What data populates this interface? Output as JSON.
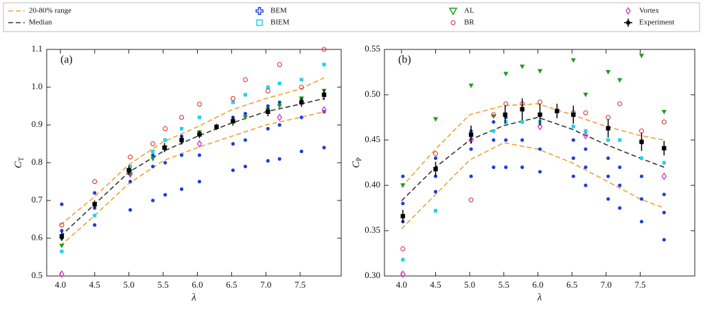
{
  "chart_data": [
    {
      "type": "scatter",
      "annotation": "(a)",
      "xlabel": "λ",
      "ylabel": "C",
      "ylabel_sub": "T",
      "xlim": [
        3.8,
        8.1
      ],
      "ylim": [
        0.5,
        1.1
      ],
      "xticks": [
        {
          "value": 4,
          "label": "4.0"
        },
        4.5,
        {
          "value": 5,
          "label": "5.0"
        },
        5.5,
        {
          "value": 6,
          "label": "6.0"
        },
        6.5,
        {
          "value": 7,
          "label": "7.0"
        },
        7.5
      ],
      "yticks": [
        0.5,
        0.6,
        0.7,
        0.8,
        0.9,
        {
          "value": 1,
          "label": "1.0"
        },
        1.1
      ],
      "series": [
        {
          "type": "band",
          "name": "20-80% range",
          "color": "#f0a030",
          "x": [
            4.0,
            4.5,
            5.0,
            5.5,
            6.0,
            6.5,
            7.0,
            7.5,
            7.85
          ],
          "low": [
            0.58,
            0.66,
            0.745,
            0.805,
            0.84,
            0.87,
            0.9,
            0.92,
            0.935
          ],
          "high": [
            0.635,
            0.71,
            0.795,
            0.855,
            0.895,
            0.94,
            0.97,
            0.995,
            1.025
          ]
        },
        {
          "type": "line",
          "name": "Median",
          "color": "#333333",
          "x": [
            4.0,
            4.5,
            5.0,
            5.5,
            6.0,
            6.5,
            7.0,
            7.5,
            7.85
          ],
          "values": [
            0.605,
            0.69,
            0.775,
            0.83,
            0.87,
            0.905,
            0.935,
            0.955,
            0.97
          ]
        },
        {
          "type": "points",
          "name": "BEM",
          "color": "#1f3fd6",
          "marker": "dot",
          "legend_marker": "plus",
          "x": [
            4.02,
            4.02,
            4.02,
            4.5,
            4.5,
            4.5,
            5.02,
            5.02,
            5.02,
            5.35,
            5.35,
            5.35,
            5.53,
            5.53,
            5.53,
            5.77,
            5.77,
            5.77,
            6.03,
            6.03,
            6.03,
            6.52,
            6.52,
            6.52,
            6.7,
            6.7,
            6.7,
            7.03,
            7.03,
            7.03,
            7.2,
            7.2,
            7.2,
            7.52,
            7.52,
            7.52,
            7.85,
            7.85,
            7.85
          ],
          "values": [
            0.69,
            0.62,
            0.6,
            0.72,
            0.68,
            0.635,
            0.78,
            0.75,
            0.675,
            0.82,
            0.79,
            0.7,
            0.84,
            0.8,
            0.715,
            0.87,
            0.82,
            0.73,
            0.88,
            0.82,
            0.75,
            0.92,
            0.85,
            0.78,
            0.93,
            0.86,
            0.79,
            0.95,
            0.89,
            0.805,
            0.96,
            0.9,
            0.81,
            0.97,
            0.92,
            0.83,
            0.98,
            0.935,
            0.84
          ]
        },
        {
          "type": "points",
          "name": "BIEM",
          "color": "#22d3e6",
          "marker": "square",
          "legend_marker": "square-open",
          "x": [
            4.02,
            4.5,
            5.02,
            5.35,
            5.53,
            5.77,
            6.03,
            6.52,
            6.7,
            7.03,
            7.2,
            7.52,
            7.85
          ],
          "values": [
            0.565,
            0.66,
            0.79,
            0.83,
            0.86,
            0.89,
            0.92,
            0.96,
            0.98,
            1.0,
            1.01,
            1.02,
            1.06
          ]
        },
        {
          "type": "points",
          "name": "AL",
          "color": "#1a9e1a",
          "marker": "tri",
          "legend_marker": "tri-open",
          "x": [
            4.02,
            4.5,
            5.02,
            5.35,
            5.53,
            5.77,
            6.03,
            6.52,
            6.7,
            7.03,
            7.2,
            7.52,
            7.85
          ],
          "values": [
            0.58,
            0.69,
            0.77,
            0.81,
            0.84,
            0.86,
            0.88,
            0.91,
            0.92,
            0.94,
            0.95,
            0.97,
            0.99
          ]
        },
        {
          "type": "points",
          "name": "BR",
          "color": "#e02020",
          "marker": "circle",
          "x": [
            4.02,
            4.5,
            5.02,
            5.35,
            5.53,
            5.77,
            6.03,
            6.52,
            6.7,
            7.03,
            7.2,
            7.52,
            7.85
          ],
          "values": [
            0.635,
            0.75,
            0.815,
            0.85,
            0.89,
            0.92,
            0.955,
            0.97,
            1.02,
            0.99,
            1.06,
            1.0,
            1.1
          ]
        },
        {
          "type": "points",
          "name": "Vortex",
          "color": "#cc33cc",
          "marker": "diamond",
          "x": [
            4.02,
            5.02,
            6.03,
            7.2,
            7.85
          ],
          "values": [
            0.505,
            0.77,
            0.85,
            0.92,
            0.94
          ]
        },
        {
          "type": "errorbar",
          "name": "Experiment",
          "color": "#000000",
          "marker": "square",
          "x": [
            4.02,
            4.5,
            5.0,
            5.52,
            5.77,
            6.03,
            6.28,
            6.52,
            7.03,
            7.52,
            7.85
          ],
          "values": [
            0.605,
            0.69,
            0.78,
            0.84,
            0.86,
            0.875,
            0.895,
            0.91,
            0.935,
            0.96,
            0.98
          ],
          "errors": [
            0.012,
            0.01,
            0.012,
            0.012,
            0.012,
            0.01,
            0.008,
            0.012,
            0.012,
            0.012,
            0.014
          ]
        }
      ]
    },
    {
      "type": "scatter",
      "annotation": "(b)",
      "xlabel": "λ",
      "ylabel": "C",
      "ylabel_sub": "P",
      "xlim": [
        3.75,
        8.3
      ],
      "ylim": [
        0.3,
        0.55
      ],
      "xticks": [
        {
          "value": 4,
          "label": "4.0"
        },
        4.5,
        {
          "value": 5,
          "label": "5.0"
        },
        5.5,
        {
          "value": 6,
          "label": "6.0"
        },
        6.5,
        {
          "value": 7,
          "label": "7.0"
        },
        7.5
      ],
      "yticks": [
        {
          "value": 0.3,
          "label": "0.30"
        },
        0.35,
        {
          "value": 0.4,
          "label": "0.40"
        },
        0.45,
        {
          "value": 0.5,
          "label": "0.50"
        },
        0.55
      ],
      "series": [
        {
          "type": "band",
          "color": "#f0a030",
          "x": [
            4.0,
            4.5,
            5.0,
            5.5,
            6.0,
            6.5,
            7.0,
            7.5,
            7.85
          ],
          "low": [
            0.352,
            0.39,
            0.428,
            0.447,
            0.44,
            0.425,
            0.405,
            0.385,
            0.375
          ],
          "high": [
            0.398,
            0.44,
            0.478,
            0.488,
            0.49,
            0.478,
            0.465,
            0.455,
            0.45
          ]
        },
        {
          "type": "line",
          "color": "#333333",
          "x": [
            4.0,
            4.5,
            5.0,
            5.5,
            6.0,
            6.5,
            7.0,
            7.5,
            7.85
          ],
          "values": [
            0.383,
            0.42,
            0.45,
            0.466,
            0.475,
            0.462,
            0.445,
            0.43,
            0.42
          ]
        },
        {
          "type": "points",
          "color": "#1f3fd6",
          "marker": "dot",
          "x": [
            4.02,
            4.02,
            4.02,
            4.5,
            4.5,
            4.5,
            5.02,
            5.02,
            5.02,
            5.35,
            5.35,
            5.35,
            5.53,
            5.53,
            5.53,
            5.77,
            5.77,
            5.77,
            6.03,
            6.03,
            6.03,
            6.52,
            6.52,
            6.52,
            6.7,
            6.7,
            6.7,
            7.03,
            7.03,
            7.03,
            7.2,
            7.2,
            7.2,
            7.52,
            7.52,
            7.52,
            7.85,
            7.85,
            7.85
          ],
          "values": [
            0.41,
            0.38,
            0.36,
            0.43,
            0.41,
            0.393,
            0.46,
            0.44,
            0.41,
            0.47,
            0.45,
            0.42,
            0.475,
            0.45,
            0.42,
            0.47,
            0.45,
            0.42,
            0.47,
            0.44,
            0.415,
            0.45,
            0.43,
            0.41,
            0.44,
            0.42,
            0.4,
            0.43,
            0.41,
            0.385,
            0.42,
            0.4,
            0.375,
            0.41,
            0.385,
            0.36,
            0.39,
            0.37,
            0.34
          ]
        },
        {
          "type": "points",
          "color": "#22d3e6",
          "marker": "square",
          "x": [
            4.02,
            4.5,
            5.02,
            5.35,
            5.53,
            5.77,
            6.03,
            6.52,
            6.7,
            7.03,
            7.2,
            7.52,
            7.85
          ],
          "values": [
            0.318,
            0.372,
            0.455,
            0.46,
            0.47,
            0.47,
            0.47,
            0.465,
            0.46,
            0.45,
            0.45,
            0.43,
            0.425
          ]
        },
        {
          "type": "points",
          "color": "#1a9e1a",
          "marker": "tri",
          "x": [
            4.02,
            4.5,
            5.02,
            5.35,
            5.53,
            5.77,
            6.03,
            6.52,
            6.7,
            7.03,
            7.2,
            7.52,
            7.85
          ],
          "values": [
            0.4,
            0.473,
            0.51,
            0.476,
            0.523,
            0.531,
            0.526,
            0.538,
            0.5,
            0.525,
            0.516,
            0.543,
            0.481
          ]
        },
        {
          "type": "points",
          "color": "#e02020",
          "marker": "circle",
          "x": [
            4.02,
            4.5,
            5.02,
            5.35,
            5.53,
            5.77,
            6.03,
            6.52,
            6.7,
            7.03,
            7.2,
            7.52,
            7.85
          ],
          "values": [
            0.33,
            0.435,
            0.384,
            0.478,
            0.49,
            0.49,
            0.492,
            0.48,
            0.48,
            0.475,
            0.49,
            0.46,
            0.47
          ]
        },
        {
          "type": "points",
          "color": "#cc33cc",
          "marker": "diamond",
          "x": [
            4.02,
            5.02,
            6.03,
            6.7,
            7.85
          ],
          "values": [
            0.302,
            0.45,
            0.465,
            0.455,
            0.41
          ]
        },
        {
          "type": "errorbar",
          "color": "#000000",
          "marker": "square",
          "x": [
            4.02,
            4.5,
            5.02,
            5.52,
            5.77,
            6.03,
            6.28,
            6.52,
            7.03,
            7.52,
            7.85
          ],
          "values": [
            0.366,
            0.418,
            0.456,
            0.478,
            0.484,
            0.478,
            0.482,
            0.478,
            0.463,
            0.448,
            0.441
          ],
          "errors": [
            0.007,
            0.008,
            0.01,
            0.01,
            0.012,
            0.012,
            0.008,
            0.01,
            0.01,
            0.01,
            0.008
          ]
        }
      ]
    }
  ]
}
